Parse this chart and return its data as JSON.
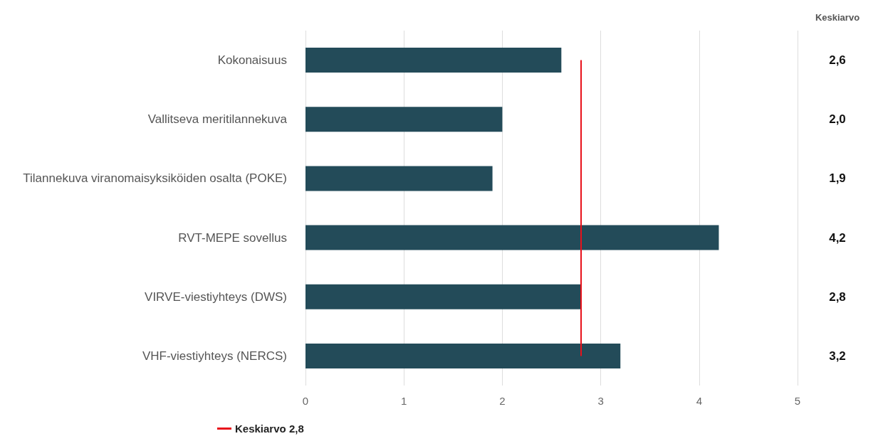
{
  "chart_data": {
    "type": "bar",
    "orientation": "horizontal",
    "categories": [
      "Kokonaisuus",
      "Vallitseva meritilannekuva",
      "Tilannekuva viranomaisyksiköiden osalta (POKE)",
      "RVT-MEPE sovellus",
      "VIRVE-viestiyhteys (DWS)",
      "VHF-viestiyhteys (NERCS)"
    ],
    "values": [
      2.6,
      2.0,
      1.9,
      4.2,
      2.8,
      3.2
    ],
    "value_labels": [
      "2,6",
      "2,0",
      "1,9",
      "4,2",
      "2,8",
      "3,2"
    ],
    "color": "#234b59",
    "xlim": [
      0,
      5
    ],
    "xticks": [
      0,
      1,
      2,
      3,
      4,
      5
    ],
    "grid": "x",
    "ref_lines": [
      {
        "axis": "x",
        "value": 2.8,
        "label": "Keskiarvo 2,8",
        "color": "#e8111b"
      }
    ],
    "legend": "bottom left",
    "annotations": [
      "Keskiarvo"
    ]
  }
}
